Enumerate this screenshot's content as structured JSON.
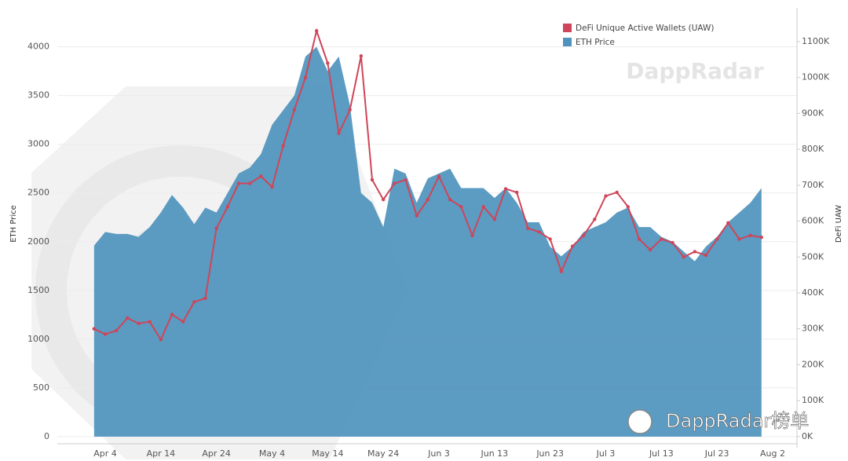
{
  "chart_data": {
    "type": "area-line",
    "y_label": "ETH Price",
    "y2_label": "DeFi UAW",
    "watermark": "DappRadar",
    "overlay_text": "DappRadar榜单",
    "legend": "top-right",
    "grid": true,
    "x": [
      null,
      "Apr 4",
      null,
      null,
      null,
      null,
      "Apr 14",
      null,
      null,
      null,
      null,
      "Apr 24",
      null,
      null,
      null,
      null,
      "May 4",
      null,
      null,
      null,
      null,
      "May 14",
      null,
      null,
      null,
      null,
      "May 24",
      null,
      null,
      null,
      null,
      "Jun 3",
      null,
      null,
      null,
      null,
      "Jun 13",
      null,
      null,
      null,
      null,
      "Jun 23",
      null,
      null,
      null,
      null,
      "Jul 3",
      null,
      null,
      null,
      null,
      "Jul 13",
      null,
      null,
      null,
      null,
      "Jul 23",
      null,
      null,
      null,
      null,
      "Aug 2"
    ],
    "series": [
      {
        "name": "DeFi Unique Active Wallets (UAW)",
        "color": "#cf4559",
        "axis": "y2",
        "values": [
          300,
          285,
          295,
          330,
          315,
          320,
          270,
          340,
          320,
          375,
          385,
          580,
          640,
          705,
          705,
          725,
          695,
          810,
          910,
          1000,
          1130,
          1040,
          845,
          910,
          1060,
          715,
          660,
          705,
          715,
          615,
          660,
          725,
          660,
          640,
          560,
          640,
          605,
          690,
          680,
          580,
          570,
          550,
          460,
          530,
          560,
          605,
          670,
          680,
          640,
          550,
          520,
          550,
          540,
          500,
          515,
          505,
          550,
          595,
          550,
          560,
          555,
          null
        ]
      },
      {
        "name": "ETH Price",
        "color": "#4e92bd",
        "axis": "y",
        "values": [
          1960,
          2100,
          2080,
          2080,
          2050,
          2150,
          2300,
          2480,
          2350,
          2180,
          2350,
          2300,
          2500,
          2700,
          2760,
          2900,
          3200,
          3350,
          3500,
          3900,
          4000,
          3750,
          3900,
          3400,
          2500,
          2400,
          2150,
          2750,
          2700,
          2400,
          2650,
          2700,
          2750,
          2550,
          2550,
          2550,
          2450,
          2550,
          2400,
          2200,
          2200,
          1950,
          1850,
          1950,
          2100,
          2150,
          2200,
          2300,
          2350,
          2150,
          2150,
          2050,
          2000,
          1900,
          1800,
          1950,
          2050,
          2200,
          2300,
          2400,
          2550,
          null
        ]
      }
    ],
    "ylim": [
      -73,
      4400
    ],
    "yticks": [
      0,
      500,
      1000,
      1500,
      2000,
      2500,
      3000,
      3500,
      4000
    ],
    "y2lim": [
      -20,
      1194
    ],
    "y2ticks": [
      {
        "value": 0,
        "label": "0K"
      },
      {
        "value": 100,
        "label": "100K"
      },
      {
        "value": 200,
        "label": "200K"
      },
      {
        "value": 300,
        "label": "300K"
      },
      {
        "value": 400,
        "label": "400K"
      },
      {
        "value": 500,
        "label": "500K"
      },
      {
        "value": 600,
        "label": "600K"
      },
      {
        "value": 700,
        "label": "700K"
      },
      {
        "value": 800,
        "label": "800K"
      },
      {
        "value": 900,
        "label": "900K"
      },
      {
        "value": 1000,
        "label": "1000K"
      },
      {
        "value": 1100,
        "label": "1100K"
      }
    ]
  }
}
